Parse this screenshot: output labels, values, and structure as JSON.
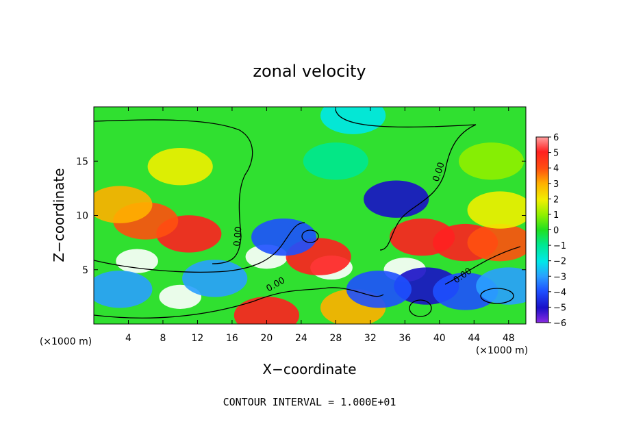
{
  "chart_data": {
    "type": "heatmap",
    "title": "zonal velocity",
    "xlabel": "X−coordinate",
    "ylabel": "Z−coordinate",
    "x_unit_label": "(×1000 m)",
    "y_unit_label": "(×1000 m)",
    "xlim": [
      0,
      50
    ],
    "ylim": [
      0,
      20
    ],
    "x_ticks": [
      4,
      8,
      12,
      16,
      20,
      24,
      28,
      32,
      36,
      40,
      44,
      48
    ],
    "y_ticks": [
      5,
      10,
      15
    ],
    "colorbar": {
      "ticks": [
        "6",
        "5",
        "4",
        "3",
        "2",
        "1",
        "0",
        "−1",
        "−2",
        "−3",
        "−4",
        "−5",
        "−6"
      ],
      "range": [
        -6,
        6
      ]
    },
    "contour_labels": [
      "0.00",
      "0.00",
      "0.00",
      "0.00"
    ],
    "footer": "CONTOUR INTERVAL = 1.000E+01",
    "features": [
      {
        "x": 10,
        "z": 2.5,
        "value": 7
      },
      {
        "x": 5,
        "z": 5.8,
        "value": 7
      },
      {
        "x": 20,
        "z": 6.2,
        "value": 7
      },
      {
        "x": 27.5,
        "z": 5.2,
        "value": 6.5
      },
      {
        "x": 11,
        "z": 8.3,
        "value": 4.8
      },
      {
        "x": 6,
        "z": 9.5,
        "value": 3.5
      },
      {
        "x": 26,
        "z": 6.2,
        "value": 5
      },
      {
        "x": 36,
        "z": 5,
        "value": 6.5
      },
      {
        "x": 38,
        "z": 8,
        "value": 4.5
      },
      {
        "x": 43,
        "z": 7.5,
        "value": 4.5
      },
      {
        "x": 47,
        "z": 7.5,
        "value": 3.5
      },
      {
        "x": 20,
        "z": 0.8,
        "value": 5
      },
      {
        "x": 30,
        "z": 1.5,
        "value": 3
      },
      {
        "x": 35,
        "z": 11.5,
        "value": -4.8
      },
      {
        "x": 3,
        "z": 3.2,
        "value": -3.5
      },
      {
        "x": 14,
        "z": 4.2,
        "value": -3.5
      },
      {
        "x": 22,
        "z": 8,
        "value": -4
      },
      {
        "x": 38.5,
        "z": 3.5,
        "value": -5
      },
      {
        "x": 33,
        "z": 3.2,
        "value": -4
      },
      {
        "x": 43,
        "z": 3,
        "value": -4.5
      },
      {
        "x": 48,
        "z": 3.5,
        "value": -3
      },
      {
        "x": 28,
        "z": 15,
        "value": -1.5
      },
      {
        "x": 30,
        "z": 19.2,
        "value": -2
      },
      {
        "x": 10,
        "z": 14.5,
        "value": 1.6
      },
      {
        "x": 46,
        "z": 15,
        "value": 0.8
      },
      {
        "x": 47,
        "z": 10.5,
        "value": 1.5
      },
      {
        "x": 3,
        "z": 11,
        "value": 2.5
      }
    ]
  }
}
